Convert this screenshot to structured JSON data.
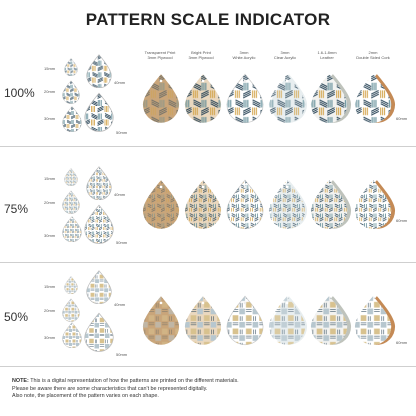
{
  "title": "PATTERN SCALE INDICATOR",
  "columns": [
    {
      "line1": "Transparent Print",
      "line2": "3mm Plywood"
    },
    {
      "line1": "Bright Print",
      "line2": "3mm Plywood"
    },
    {
      "line1": "3mm",
      "line2": "White Acrylic"
    },
    {
      "line1": "3mm",
      "line2": "Clear Acrylic"
    },
    {
      "line1": "1.6-1.8mm",
      "line2": "Leather"
    },
    {
      "line1": "2mm",
      "line2": "Double Sided Cork"
    }
  ],
  "sections": [
    {
      "scale": "100%",
      "sizes": {
        "s15": "15mm",
        "s20": "20mm",
        "s30": "30mm",
        "s40": "40mm",
        "s50": "50mm",
        "s60": "60mm"
      }
    },
    {
      "scale": "75%",
      "sizes": {
        "s15": "15mm",
        "s20": "20mm",
        "s30": "30mm",
        "s40": "40mm",
        "s50": "50mm",
        "s60": "60mm"
      }
    },
    {
      "scale": "50%",
      "sizes": {
        "s15": "15mm",
        "s20": "20mm",
        "s30": "30mm",
        "s40": "40mm",
        "s50": "50mm",
        "s60": "60mm"
      }
    }
  ],
  "note": {
    "label": "NOTE:",
    "line1": "This is a digital representation of how the patterns are printed on the different materials.",
    "line2": "Please be aware there are some characteristics that can't be represented digitally.",
    "line3": "Also note, the placement of the pattern varies on each shape."
  },
  "colors": {
    "navy": "#2f4a5c",
    "teal": "#5e8b96",
    "mustard": "#d2a34a",
    "wood": "#c9a57a",
    "cork": "#c48a55",
    "leather": "#bfc3bc",
    "divider": "#cfcfcf"
  }
}
